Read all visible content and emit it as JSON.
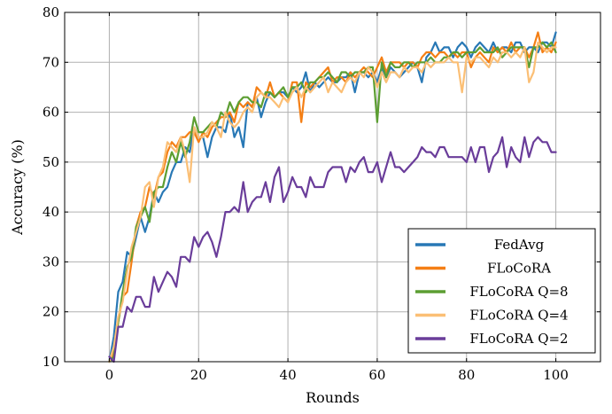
{
  "chart_data": {
    "type": "line",
    "title": "",
    "xlabel": "Rounds",
    "ylabel": "Accuracy (%)",
    "xlim": [
      -10,
      110
    ],
    "ylim": [
      10,
      80
    ],
    "xticks": [
      0,
      20,
      40,
      60,
      80,
      100
    ],
    "yticks": [
      10,
      20,
      30,
      40,
      50,
      60,
      70,
      80
    ],
    "grid": true,
    "legend_position": "bottom-right",
    "series": [
      {
        "name": "FedAvg",
        "color": "#2878b5",
        "x": [
          0,
          1,
          2,
          3,
          4,
          5,
          6,
          7,
          8,
          9,
          10,
          11,
          12,
          13,
          14,
          15,
          16,
          17,
          18,
          19,
          20,
          21,
          22,
          23,
          24,
          25,
          26,
          27,
          28,
          29,
          30,
          31,
          32,
          33,
          34,
          35,
          36,
          37,
          38,
          39,
          40,
          41,
          42,
          43,
          44,
          45,
          46,
          47,
          48,
          49,
          50,
          51,
          52,
          53,
          54,
          55,
          56,
          57,
          58,
          59,
          60,
          61,
          62,
          63,
          64,
          65,
          66,
          67,
          68,
          69,
          70,
          71,
          72,
          73,
          74,
          75,
          76,
          77,
          78,
          79,
          80,
          81,
          82,
          83,
          84,
          85,
          86,
          87,
          88,
          89,
          90,
          91,
          92,
          93,
          94,
          95,
          96,
          97,
          98,
          99,
          100
        ],
        "values": [
          10,
          15,
          24,
          26,
          32,
          31,
          35,
          39,
          36,
          39,
          44,
          42,
          44,
          45,
          48,
          50,
          50,
          53,
          52,
          57,
          55,
          55,
          51,
          55,
          57,
          57,
          56,
          60,
          55,
          57,
          53,
          62,
          61,
          63,
          59,
          62,
          64,
          63,
          64,
          64,
          63,
          65,
          64,
          65,
          68,
          64,
          66,
          65,
          66,
          67,
          66,
          66,
          67,
          67,
          68,
          64,
          68,
          68,
          67,
          68,
          66,
          69,
          67,
          69,
          68,
          67,
          68,
          69,
          70,
          69,
          66,
          71,
          72,
          74,
          72,
          73,
          73,
          71,
          73,
          74,
          73,
          71,
          73,
          74,
          73,
          72,
          74,
          72,
          73,
          73,
          72,
          74,
          74,
          72,
          73,
          73,
          72,
          74,
          74,
          73,
          76
        ]
      },
      {
        "name": "FLoCoRA",
        "color": "#f47f15",
        "x": [
          0,
          1,
          2,
          3,
          4,
          5,
          6,
          7,
          8,
          9,
          10,
          11,
          12,
          13,
          14,
          15,
          16,
          17,
          18,
          19,
          20,
          21,
          22,
          23,
          24,
          25,
          26,
          27,
          28,
          29,
          30,
          31,
          32,
          33,
          34,
          35,
          36,
          37,
          38,
          39,
          40,
          41,
          42,
          43,
          44,
          45,
          46,
          47,
          48,
          49,
          50,
          51,
          52,
          53,
          54,
          55,
          56,
          57,
          58,
          59,
          60,
          61,
          62,
          63,
          64,
          65,
          66,
          67,
          68,
          69,
          70,
          71,
          72,
          73,
          74,
          75,
          76,
          77,
          78,
          79,
          80,
          81,
          82,
          83,
          84,
          85,
          86,
          87,
          88,
          89,
          90,
          91,
          92,
          93,
          94,
          95,
          96,
          97,
          98,
          99,
          100
        ],
        "values": [
          10,
          12,
          18,
          23,
          24,
          30,
          37,
          40,
          41,
          45,
          43,
          47,
          48,
          52,
          54,
          53,
          55,
          55,
          56,
          56,
          54,
          56,
          55,
          57,
          58,
          59,
          59,
          60,
          58,
          62,
          61,
          62,
          61,
          65,
          64,
          63,
          66,
          63,
          64,
          63,
          62,
          66,
          66,
          58,
          66,
          65,
          66,
          67,
          68,
          69,
          66,
          67,
          67,
          66,
          68,
          67,
          68,
          69,
          68,
          67,
          69,
          71,
          68,
          70,
          70,
          70,
          69,
          70,
          70,
          69,
          71,
          72,
          72,
          71,
          72,
          72,
          71,
          72,
          71,
          72,
          72,
          69,
          71,
          72,
          71,
          70,
          73,
          72,
          73,
          72,
          74,
          72,
          73,
          73,
          71,
          73,
          76,
          72,
          73,
          72,
          74
        ]
      },
      {
        "name": "FLoCoRA Q=8",
        "color": "#5c9e32",
        "x": [
          0,
          1,
          2,
          3,
          4,
          5,
          6,
          7,
          8,
          9,
          10,
          11,
          12,
          13,
          14,
          15,
          16,
          17,
          18,
          19,
          20,
          21,
          22,
          23,
          24,
          25,
          26,
          27,
          28,
          29,
          30,
          31,
          32,
          33,
          34,
          35,
          36,
          37,
          38,
          39,
          40,
          41,
          42,
          43,
          44,
          45,
          46,
          47,
          48,
          49,
          50,
          51,
          52,
          53,
          54,
          55,
          56,
          57,
          58,
          59,
          60,
          61,
          62,
          63,
          64,
          65,
          66,
          67,
          68,
          69,
          70,
          71,
          72,
          73,
          74,
          75,
          76,
          77,
          78,
          79,
          80,
          81,
          82,
          83,
          84,
          85,
          86,
          87,
          88,
          89,
          90,
          91,
          92,
          93,
          94,
          95,
          96,
          97,
          98,
          99,
          100
        ],
        "values": [
          10,
          11,
          18,
          24,
          29,
          31,
          37,
          39,
          41,
          38,
          44,
          45,
          45,
          49,
          52,
          50,
          54,
          51,
          54,
          59,
          56,
          56,
          57,
          58,
          57,
          60,
          59,
          62,
          60,
          62,
          63,
          63,
          62,
          62,
          61,
          64,
          64,
          63,
          64,
          65,
          63,
          65,
          65,
          66,
          64,
          66,
          66,
          67,
          67,
          68,
          67,
          66,
          68,
          68,
          67,
          68,
          68,
          68,
          69,
          69,
          58,
          70,
          67,
          70,
          69,
          69,
          70,
          70,
          69,
          70,
          70,
          70,
          71,
          70,
          70,
          71,
          71,
          72,
          72,
          71,
          72,
          72,
          72,
          73,
          72,
          72,
          72,
          73,
          71,
          72,
          73,
          73,
          73,
          73,
          69,
          73,
          73,
          74,
          73,
          74,
          72
        ]
      },
      {
        "name": "FLoCoRA Q=4",
        "color": "#fbbf75",
        "x": [
          0,
          1,
          2,
          3,
          4,
          5,
          6,
          7,
          8,
          9,
          10,
          11,
          12,
          13,
          14,
          15,
          16,
          17,
          18,
          19,
          20,
          21,
          22,
          23,
          24,
          25,
          26,
          27,
          28,
          29,
          30,
          31,
          32,
          33,
          34,
          35,
          36,
          37,
          38,
          39,
          40,
          41,
          42,
          43,
          44,
          45,
          46,
          47,
          48,
          49,
          50,
          51,
          52,
          53,
          54,
          55,
          56,
          57,
          58,
          59,
          60,
          61,
          62,
          63,
          64,
          65,
          66,
          67,
          68,
          69,
          70,
          71,
          72,
          73,
          74,
          75,
          76,
          77,
          78,
          79,
          80,
          81,
          82,
          83,
          84,
          85,
          86,
          87,
          88,
          89,
          90,
          91,
          92,
          93,
          94,
          95,
          96,
          97,
          98,
          99,
          100
        ],
        "values": [
          10,
          13,
          19,
          22,
          28,
          33,
          36,
          39,
          45,
          46,
          41,
          47,
          49,
          54,
          53,
          52,
          55,
          52,
          46,
          57,
          55,
          55,
          56,
          58,
          57,
          55,
          60,
          58,
          57,
          58,
          60,
          61,
          60,
          63,
          64,
          63,
          63,
          62,
          61,
          63,
          62,
          64,
          65,
          63,
          65,
          64,
          65,
          66,
          67,
          64,
          66,
          65,
          64,
          66,
          67,
          66,
          68,
          67,
          69,
          68,
          65,
          68,
          66,
          68,
          68,
          67,
          69,
          68,
          69,
          69,
          68,
          70,
          69,
          70,
          70,
          70,
          71,
          70,
          70,
          64,
          71,
          70,
          71,
          71,
          70,
          69,
          71,
          70,
          72,
          72,
          71,
          72,
          71,
          73,
          66,
          68,
          74,
          73,
          72,
          73,
          73
        ]
      },
      {
        "name": "FLoCoRA Q=2",
        "color": "#6a3d9a",
        "x": [
          0,
          1,
          2,
          3,
          4,
          5,
          6,
          7,
          8,
          9,
          10,
          11,
          12,
          13,
          14,
          15,
          16,
          17,
          18,
          19,
          20,
          21,
          22,
          23,
          24,
          25,
          26,
          27,
          28,
          29,
          30,
          31,
          32,
          33,
          34,
          35,
          36,
          37,
          38,
          39,
          40,
          41,
          42,
          43,
          44,
          45,
          46,
          47,
          48,
          49,
          50,
          51,
          52,
          53,
          54,
          55,
          56,
          57,
          58,
          59,
          60,
          61,
          62,
          63,
          64,
          65,
          66,
          67,
          68,
          69,
          70,
          71,
          72,
          73,
          74,
          75,
          76,
          77,
          78,
          79,
          80,
          81,
          82,
          83,
          84,
          85,
          86,
          87,
          88,
          89,
          90,
          91,
          92,
          93,
          94,
          95,
          96,
          97,
          98,
          99,
          100
        ],
        "values": [
          11,
          10,
          17,
          17,
          21,
          20,
          23,
          23,
          21,
          21,
          27,
          24,
          26,
          28,
          27,
          25,
          31,
          31,
          30,
          35,
          33,
          35,
          36,
          34,
          31,
          35,
          40,
          40,
          41,
          40,
          46,
          40,
          42,
          43,
          43,
          46,
          42,
          47,
          49,
          42,
          44,
          47,
          45,
          45,
          43,
          47,
          45,
          45,
          45,
          48,
          49,
          49,
          49,
          46,
          49,
          48,
          50,
          51,
          48,
          48,
          50,
          46,
          49,
          52,
          49,
          49,
          48,
          49,
          50,
          51,
          53,
          52,
          52,
          51,
          53,
          53,
          51,
          51,
          51,
          51,
          50,
          53,
          50,
          53,
          53,
          48,
          51,
          52,
          55,
          49,
          53,
          51,
          50,
          55,
          51,
          54,
          55,
          54,
          54,
          52,
          52
        ]
      }
    ]
  }
}
